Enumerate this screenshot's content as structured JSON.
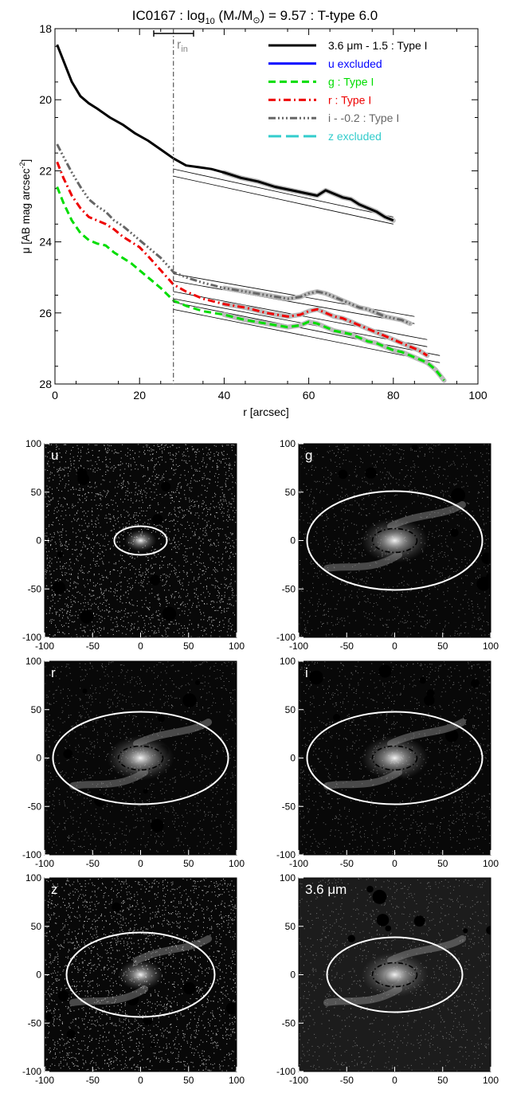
{
  "title_parts": {
    "name": "IC0167 : log",
    "sub10": "10",
    "mass_open": " (M",
    "star": "*",
    "slash": "/M",
    "sun": "⊙",
    "rest": ") = 9.57 : T-type 6.0"
  },
  "profile": {
    "ylabel": "μ [AB mag arcsec",
    "ylabel_sup": "-2",
    "ylabel_close": "]",
    "xlabel": "r [arcsec]",
    "rin_label": "r",
    "rin_sub": "in",
    "xticks": [
      "0",
      "20",
      "40",
      "60",
      "80",
      "100"
    ],
    "yticks": [
      "18",
      "20",
      "22",
      "24",
      "26",
      "28"
    ]
  },
  "legend": {
    "items": [
      {
        "label_pre": "3.6 ",
        "mu": "μ",
        "label_post": "m - 1.5 : Type I",
        "color": "#000000",
        "dash": ""
      },
      {
        "label_pre": "u excluded",
        "mu": "",
        "label_post": "",
        "color": "#0000ff",
        "dash": ""
      },
      {
        "label_pre": "g : Type I",
        "mu": "",
        "label_post": "",
        "color": "#00dd00",
        "dash": "9,5"
      },
      {
        "label_pre": "r : Type I",
        "mu": "",
        "label_post": "",
        "color": "#ee0000",
        "dash": "9,4,2,4"
      },
      {
        "label_pre": "i - -0.2 : Type I",
        "mu": "",
        "label_post": "",
        "color": "#666666",
        "dash": "9,3,2,3,2,3,2,3"
      },
      {
        "label_pre": "z excluded",
        "mu": "",
        "label_post": "",
        "color": "#33cccc",
        "dash": "16,6"
      }
    ]
  },
  "panels": [
    {
      "label": "u",
      "mu": "",
      "label_post": ""
    },
    {
      "label": "g",
      "mu": "",
      "label_post": ""
    },
    {
      "label": "r",
      "mu": "",
      "label_post": ""
    },
    {
      "label": "i",
      "mu": "",
      "label_post": ""
    },
    {
      "label": "z",
      "mu": "",
      "label_post": ""
    },
    {
      "label": "3.6 ",
      "mu": "μ",
      "label_post": "m"
    }
  ],
  "panel_axes": {
    "xticks_a": [
      "-100",
      "-50",
      "0",
      "50",
      "100"
    ],
    "yticks_a": [
      "100",
      "50",
      "0",
      "-50",
      "-100"
    ]
  },
  "chart_data": [
    {
      "type": "line",
      "title": "IC0167 : log10 (M*/M⊙) = 9.57 : T-type 6.0",
      "xlabel": "r [arcsec]",
      "ylabel": "μ [AB mag arcsec-2]",
      "xlim": [
        0,
        100
      ],
      "ylim": [
        28,
        18
      ],
      "y_inverted": true,
      "r_in": 28,
      "r_in_range": [
        23.5,
        33
      ],
      "legend_position": "top-right",
      "series": [
        {
          "name": "3.6 μm - 1.5 : Type I",
          "color": "#000000",
          "x": [
            0.5,
            2,
            4,
            6,
            8,
            10,
            13,
            16,
            19,
            22,
            25,
            28,
            31,
            34,
            37,
            40,
            44,
            48,
            52,
            56,
            60,
            62,
            64,
            66,
            68,
            70,
            72,
            74,
            76,
            78,
            80
          ],
          "y": [
            18.45,
            18.9,
            19.5,
            19.9,
            20.1,
            20.25,
            20.5,
            20.7,
            20.95,
            21.15,
            21.4,
            21.65,
            21.85,
            21.9,
            21.95,
            22.05,
            22.2,
            22.3,
            22.45,
            22.55,
            22.65,
            22.7,
            22.55,
            22.65,
            22.75,
            22.8,
            22.95,
            23.05,
            23.15,
            23.3,
            23.4
          ]
        },
        {
          "name": "g : Type I",
          "color": "#00dd00",
          "x": [
            0.5,
            2,
            4,
            6,
            8,
            10,
            12,
            14,
            16,
            18,
            20,
            22,
            25,
            28,
            31,
            35,
            40,
            45,
            50,
            55,
            58,
            60,
            62,
            64,
            66,
            68,
            70,
            72,
            74,
            76,
            78,
            80,
            82,
            84,
            86,
            88,
            90,
            92
          ],
          "y": [
            22.45,
            22.9,
            23.4,
            23.75,
            23.95,
            24.05,
            24.1,
            24.3,
            24.45,
            24.6,
            24.8,
            25.0,
            25.3,
            25.65,
            25.8,
            25.95,
            26.05,
            26.2,
            26.3,
            26.4,
            26.35,
            26.25,
            26.3,
            26.4,
            26.5,
            26.55,
            26.6,
            26.7,
            26.8,
            26.85,
            26.95,
            27.05,
            27.1,
            27.2,
            27.3,
            27.4,
            27.6,
            27.9
          ]
        },
        {
          "name": "r : Type I",
          "color": "#ee0000",
          "x": [
            0.5,
            2,
            4,
            6,
            8,
            10,
            12,
            14,
            16,
            18,
            20,
            22,
            25,
            28,
            31,
            35,
            40,
            45,
            50,
            55,
            58,
            60,
            62,
            64,
            66,
            68,
            70,
            72,
            74,
            76,
            78,
            80,
            82,
            84,
            86,
            88
          ],
          "y": [
            21.75,
            22.2,
            22.7,
            23.05,
            23.3,
            23.4,
            23.5,
            23.65,
            23.85,
            24.0,
            24.15,
            24.4,
            24.8,
            25.2,
            25.4,
            25.6,
            25.75,
            25.85,
            26.0,
            26.1,
            26.05,
            25.95,
            25.9,
            26.0,
            26.1,
            26.15,
            26.25,
            26.35,
            26.45,
            26.55,
            26.65,
            26.75,
            26.85,
            26.95,
            27.05,
            27.2
          ]
        },
        {
          "name": "i - -0.2 : Type I",
          "color": "#666666",
          "x": [
            0.5,
            2,
            4,
            6,
            8,
            10,
            12,
            14,
            16,
            18,
            20,
            22,
            25,
            28,
            31,
            35,
            40,
            45,
            50,
            55,
            58,
            60,
            62,
            64,
            66,
            68,
            70,
            72,
            74,
            76,
            78,
            80,
            82,
            84
          ],
          "y": [
            21.25,
            21.6,
            22.05,
            22.45,
            22.8,
            23.0,
            23.15,
            23.4,
            23.55,
            23.75,
            23.95,
            24.15,
            24.45,
            24.85,
            25.0,
            25.15,
            25.3,
            25.4,
            25.5,
            25.6,
            25.55,
            25.45,
            25.4,
            25.45,
            25.55,
            25.65,
            25.75,
            25.85,
            25.9,
            26.0,
            26.1,
            26.15,
            26.2,
            26.3
          ]
        }
      ],
      "fits": [
        {
          "series": "3.6 μm",
          "x": [
            28,
            80
          ],
          "y": [
            [
              21.95,
              23.3
            ],
            [
              22.15,
              23.5
            ]
          ]
        },
        {
          "series": "i",
          "x": [
            28,
            85
          ],
          "y": [
            [
              24.9,
              26.1
            ],
            [
              25.1,
              26.3
            ]
          ]
        },
        {
          "series": "r",
          "x": [
            28,
            88
          ],
          "y": [
            [
              25.4,
              26.75
            ],
            [
              25.6,
              26.95
            ]
          ]
        },
        {
          "series": "g",
          "x": [
            28,
            91
          ],
          "y": [
            [
              25.7,
              27.2
            ],
            [
              25.9,
              27.4
            ]
          ]
        }
      ]
    }
  ]
}
